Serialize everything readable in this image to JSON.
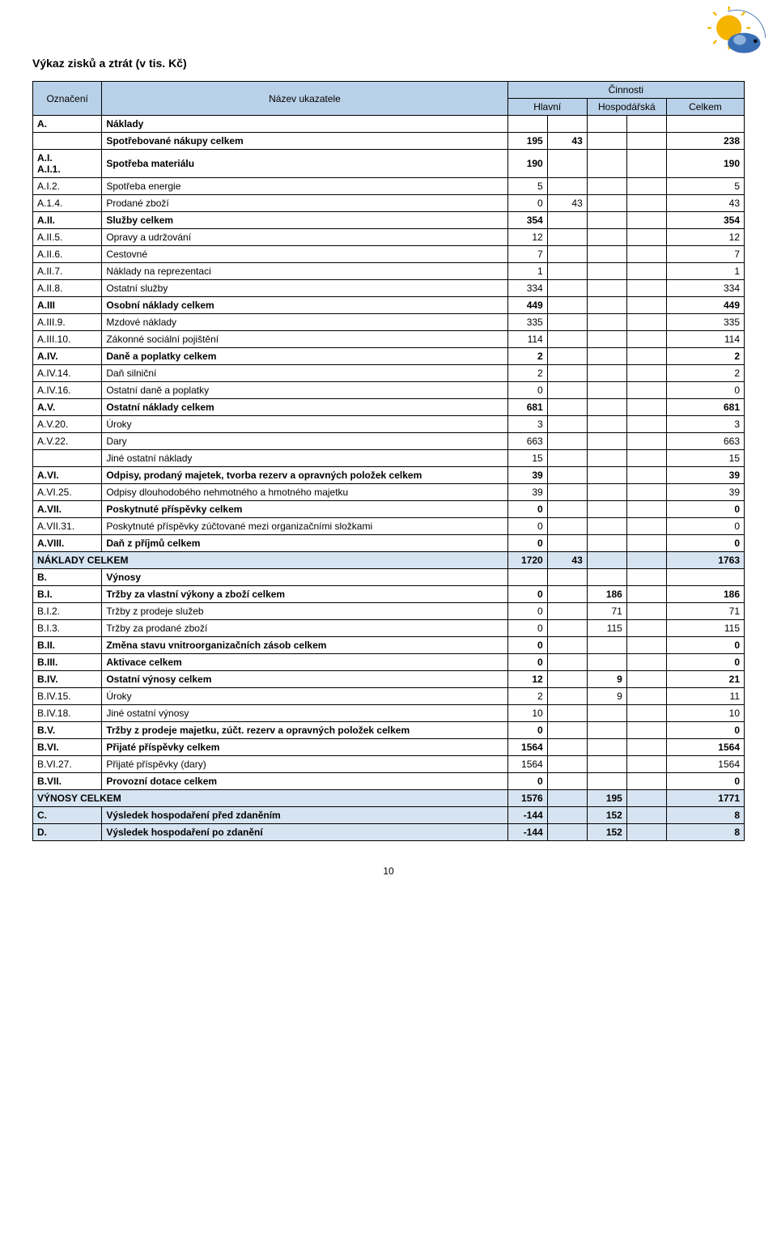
{
  "page_title": "Výkaz zisků a ztrát (v tis. Kč)",
  "page_number": "10",
  "header": {
    "col_code": "Označení",
    "col_name": "Název ukazatele",
    "group": "Činnosti",
    "sub_hlavni": "Hlavní",
    "sub_hosp": "Hospodářská",
    "sub_celkem": "Celkem"
  },
  "rows": [
    {
      "code": "A.",
      "name": "Náklady",
      "v": [
        "",
        "",
        "",
        "",
        ""
      ],
      "style": "bold"
    },
    {
      "code": "",
      "name": "Spotřebované nákupy celkem",
      "v": [
        "195",
        "43",
        "",
        "",
        "238"
      ],
      "style": "bold"
    },
    {
      "code": "A.I.",
      "name": "Spotřeba materiálu",
      "v": [
        "190",
        "",
        "",
        "",
        "190"
      ],
      "style": "bold_code"
    },
    {
      "code": "A.I.1.",
      "name": "",
      "v": [
        "",
        "",
        "",
        "",
        ""
      ],
      "merge_prev": true
    },
    {
      "code": "A.I.2.",
      "name": "Spotřeba energie",
      "v": [
        "5",
        "",
        "",
        "",
        "5"
      ]
    },
    {
      "code": "A.1.4.",
      "name": "Prodané zboží",
      "v": [
        "0",
        "43",
        "",
        "",
        "43"
      ]
    },
    {
      "code": "A.II.",
      "name": "Služby celkem",
      "v": [
        "354",
        "",
        "",
        "",
        "354"
      ],
      "style": "bold"
    },
    {
      "code": "A.II.5.",
      "name": "Opravy a udržování",
      "v": [
        "12",
        "",
        "",
        "",
        "12"
      ]
    },
    {
      "code": "A.II.6.",
      "name": "Cestovné",
      "v": [
        "7",
        "",
        "",
        "",
        "7"
      ]
    },
    {
      "code": "A.II.7.",
      "name": "Náklady na reprezentaci",
      "v": [
        "1",
        "",
        "",
        "",
        "1"
      ]
    },
    {
      "code": "A.II.8.",
      "name": "Ostatní služby",
      "v": [
        "334",
        "",
        "",
        "",
        "334"
      ]
    },
    {
      "code": "A.III",
      "name": "Osobní náklady celkem",
      "v": [
        "449",
        "",
        "",
        "",
        "449"
      ],
      "style": "bold"
    },
    {
      "code": "A.III.9.",
      "name": "Mzdové náklady",
      "v": [
        "335",
        "",
        "",
        "",
        "335"
      ]
    },
    {
      "code": "A.III.10.",
      "name": "Zákonné sociální pojištění",
      "v": [
        "114",
        "",
        "",
        "",
        "114"
      ]
    },
    {
      "code": "A.IV.",
      "name": "Daně a poplatky celkem",
      "v": [
        "2",
        "",
        "",
        "",
        "2"
      ],
      "style": "bold"
    },
    {
      "code": "A.IV.14.",
      "name": "Daň silniční",
      "v": [
        "2",
        "",
        "",
        "",
        "2"
      ]
    },
    {
      "code": "A.IV.16.",
      "name": "Ostatní daně a poplatky",
      "v": [
        "0",
        "",
        "",
        "",
        "0"
      ]
    },
    {
      "code": "A.V.",
      "name": "Ostatní náklady celkem",
      "v": [
        "681",
        "",
        "",
        "",
        "681"
      ],
      "style": "bold"
    },
    {
      "code": "",
      "name": "Úroky",
      "v": [
        "3",
        "",
        "",
        "",
        "3"
      ]
    },
    {
      "code": "A.V.20.",
      "name": "",
      "v": [
        "",
        "",
        "",
        "",
        ""
      ],
      "merge_prev": true
    },
    {
      "code": "A.V.22.",
      "name": "Dary",
      "v": [
        "663",
        "",
        "",
        "",
        "663"
      ]
    },
    {
      "code": "",
      "name": "Jiné ostatní náklady",
      "v": [
        "15",
        "",
        "",
        "",
        "15"
      ]
    },
    {
      "code": "A.VI.",
      "name": "Odpisy, prodaný majetek, tvorba rezerv a opravných položek celkem",
      "v": [
        "39",
        "",
        "",
        "",
        "39"
      ],
      "style": "bold"
    },
    {
      "code": "A.VI.25.",
      "name": "Odpisy dlouhodobého nehmotného a hmotného majetku",
      "v": [
        "39",
        "",
        "",
        "",
        "39"
      ]
    },
    {
      "code": "A.VII.",
      "name": "Poskytnuté příspěvky celkem",
      "v": [
        "0",
        "",
        "",
        "",
        "0"
      ],
      "style": "bold"
    },
    {
      "code": "A.VII.31.",
      "name": "Poskytnuté příspěvky zúčtované mezi organizačními složkami",
      "v": [
        "0",
        "",
        "",
        "",
        "0"
      ]
    },
    {
      "code": "A.VIII.",
      "name": "Daň z příjmů celkem",
      "v": [
        "0",
        "",
        "",
        "",
        "0"
      ],
      "style": "bold"
    },
    {
      "code": "NÁKLADY CELKEM",
      "name": "",
      "span_code_name": true,
      "v": [
        "1720",
        "43",
        "",
        "",
        "1763"
      ],
      "style": "hl"
    },
    {
      "code": "B.",
      "name": "Výnosy",
      "v": [
        "",
        "",
        "",
        "",
        ""
      ],
      "style": "bold"
    },
    {
      "code": "B.I.",
      "name": "Tržby za vlastní výkony a zboží celkem",
      "v": [
        "0",
        "",
        "186",
        "",
        "186"
      ],
      "style": "bold"
    },
    {
      "code": "B.I.2.",
      "name": "Tržby z prodeje služeb",
      "v": [
        "0",
        "",
        "71",
        "",
        "71"
      ]
    },
    {
      "code": "B.I.3.",
      "name": "Tržby za prodané zboží",
      "v": [
        "0",
        "",
        "115",
        "",
        "115"
      ]
    },
    {
      "code": "B.II.",
      "name": "Změna stavu vnitroorganizačních zásob celkem",
      "v": [
        "0",
        "",
        "",
        "",
        "0"
      ],
      "style": "bold"
    },
    {
      "code": "B.III.",
      "name": "Aktivace celkem",
      "v": [
        "0",
        "",
        "",
        "",
        "0"
      ],
      "style": "bold"
    },
    {
      "code": "B.IV.",
      "name": "Ostatní výnosy celkem",
      "v": [
        "12",
        "",
        "9",
        "",
        "21"
      ],
      "style": "bold"
    },
    {
      "code": "B.IV.15.",
      "name": "Úroky",
      "v": [
        "2",
        "",
        "9",
        "",
        "11"
      ]
    },
    {
      "code": "B.IV.18.",
      "name": "Jiné ostatní výnosy",
      "v": [
        "10",
        "",
        "",
        "",
        "10"
      ]
    },
    {
      "code": "B.V.",
      "name": "Tržby z prodeje majetku, zúčt. rezerv a opravných položek celkem",
      "v": [
        "0",
        "",
        "",
        "",
        "0"
      ],
      "style": "bold"
    },
    {
      "code": "B.VI.",
      "name": "Přijaté příspěvky celkem",
      "v": [
        "1564",
        "",
        "",
        "",
        "1564"
      ],
      "style": "bold"
    },
    {
      "code": "B.VI.27.",
      "name": "Přijaté příspěvky (dary)",
      "v": [
        "1564",
        "",
        "",
        "",
        "1564"
      ]
    },
    {
      "code": "B.VII.",
      "name": "Provozní dotace celkem",
      "v": [
        "0",
        "",
        "",
        "",
        "0"
      ],
      "style": "bold"
    },
    {
      "code": "VÝNOSY CELKEM",
      "name": "",
      "span_code_name": true,
      "v": [
        "1576",
        "",
        "195",
        "",
        "1771"
      ],
      "style": "hl"
    },
    {
      "code": "C.",
      "name": "Výsledek hospodaření před zdaněním",
      "v": [
        "-144",
        "",
        "152",
        "",
        "8"
      ],
      "style": "hl"
    },
    {
      "code": "D.",
      "name": "Výsledek hospodaření po zdanění",
      "v": [
        "-144",
        "",
        "152",
        "",
        "8"
      ],
      "style": "hl"
    }
  ]
}
